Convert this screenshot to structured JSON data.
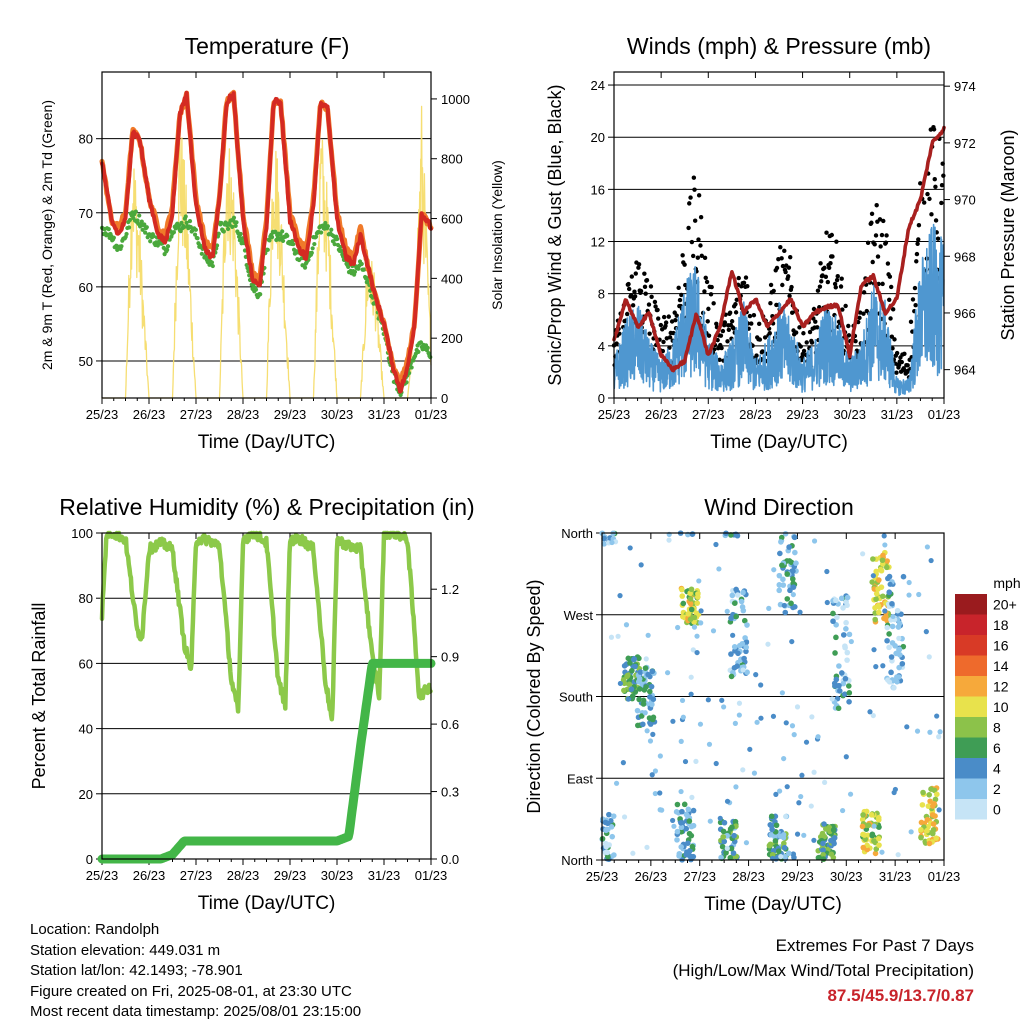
{
  "x_ticks": [
    "25/23",
    "26/23",
    "27/23",
    "28/23",
    "29/23",
    "30/23",
    "31/23",
    "01/23"
  ],
  "temperature": {
    "title": "Temperature (F)",
    "xlabel": "Time (Day/UTC)",
    "ylabel_left": "2m & 9m T (Red, Orange) & 2m Td (Green)",
    "ylabel_right": "Solar Insolation (Yellow)",
    "left_ticks": [
      "50",
      "60",
      "70",
      "80"
    ],
    "right_ticks": [
      "0",
      "200",
      "400",
      "600",
      "800",
      "1000"
    ]
  },
  "winds": {
    "title": "Winds (mph) & Pressure (mb)",
    "xlabel": "Time (Day/UTC)",
    "ylabel_left": "Sonic/Prop Wind & Gust (Blue, Black)",
    "ylabel_right": "Station Pressure (Maroon)",
    "left_ticks": [
      "0",
      "4",
      "8",
      "12",
      "16",
      "20",
      "24"
    ],
    "right_ticks": [
      "964",
      "966",
      "968",
      "970",
      "972",
      "974"
    ]
  },
  "humidity": {
    "title": "Relative Humidity (%) & Precipitation (in)",
    "xlabel": "Time (Day/UTC)",
    "ylabel_left": "Percent & Total Rainfall",
    "left_ticks": [
      "0",
      "20",
      "40",
      "60",
      "80",
      "100"
    ],
    "right_ticks": [
      "0.0",
      "0.3",
      "0.6",
      "0.9",
      "1.2"
    ]
  },
  "direction": {
    "title": "Wind Direction",
    "xlabel": "Time (Day/UTC)",
    "ylabel_left": "Direction (Colored By Speed)",
    "left_ticks": [
      "North",
      "East",
      "South",
      "West",
      "North"
    ],
    "legend_title": "mph",
    "legend_labels": [
      "0",
      "2",
      "4",
      "6",
      "8",
      "10",
      "12",
      "14",
      "16",
      "18",
      "20+"
    ],
    "legend_colors": [
      "#c6e4f6",
      "#8ec6ec",
      "#4a8cc8",
      "#3f9d55",
      "#8cc24a",
      "#e8e24c",
      "#f6a93b",
      "#ee6a2c",
      "#d83a26",
      "#c8242b",
      "#9a1b1e"
    ]
  },
  "info": {
    "location": "Location: Randolph",
    "elevation": "Station elevation: 449.031 m",
    "latlon": "Station lat/lon: 42.1493; -78.901",
    "created": "Figure created on Fri, 2025-08-01, at 23:30 UTC",
    "recent": "Most recent data timestamp: 2025/08/01 23:15:00"
  },
  "extremes": {
    "title": "Extremes For Past 7 Days",
    "subtitle": "(High/Low/Max Wind/Total Precipitation)",
    "values": "87.5/45.9/13.7/0.87"
  },
  "colors": {
    "temp2m": "#d42a22",
    "temp9m": "#f07a2a",
    "dewpoint": "#4aa83c",
    "solar": "#f6dc6a",
    "gust": "#000000",
    "wind": "#4f97d0",
    "pressure": "#a8201f",
    "rh": "#8cc94a",
    "precip": "#43b648"
  },
  "chart_data": [
    {
      "type": "line",
      "title": "Temperature (F)",
      "xlabel": "Time (Day/UTC)",
      "ylabel": "2m & 9m T (Red, Orange) & 2m Td (Green)",
      "ylabel_right": "Solar Insolation (Yellow)",
      "x_days": [
        0,
        0.2,
        0.35,
        0.5,
        0.65,
        0.8,
        1.0,
        1.2,
        1.35,
        1.5,
        1.65,
        1.8,
        2.0,
        2.2,
        2.35,
        2.5,
        2.65,
        2.8,
        3.0,
        3.2,
        3.35,
        3.5,
        3.65,
        3.8,
        4.0,
        4.2,
        4.35,
        4.5,
        4.65,
        4.8,
        5.0,
        5.2,
        5.35,
        5.5,
        5.65,
        5.8,
        6.0,
        6.2,
        6.35,
        6.5,
        6.65,
        6.8,
        7.0
      ],
      "ylim": [
        45,
        89
      ],
      "ylim_right": [
        0,
        1090
      ],
      "series": [
        {
          "name": "2m T",
          "values": [
            77,
            69,
            67,
            69,
            81,
            80,
            72,
            67,
            66,
            70,
            83,
            86,
            71,
            65,
            64,
            72,
            85,
            86,
            69,
            61,
            60,
            68,
            85,
            85,
            69,
            65,
            64,
            71,
            85,
            84,
            69,
            64,
            63,
            67,
            63,
            59,
            55,
            49,
            46,
            49,
            55,
            70,
            68
          ]
        },
        {
          "name": "9m T",
          "values": [
            77,
            69,
            68,
            70,
            81,
            80,
            72,
            68,
            67,
            71,
            83,
            86,
            72,
            66,
            65,
            72,
            85,
            86,
            70,
            62,
            61,
            69,
            85,
            85,
            70,
            66,
            65,
            72,
            85,
            84,
            70,
            65,
            64,
            68,
            63,
            59,
            55,
            49,
            47,
            50,
            55,
            70,
            68
          ]
        },
        {
          "name": "2m Td",
          "values": [
            68,
            67,
            65,
            67,
            70,
            69,
            67,
            66,
            65,
            68,
            68,
            69,
            67,
            64,
            63,
            68,
            68,
            69,
            66,
            60,
            59,
            65,
            67,
            67,
            66,
            64,
            63,
            66,
            68,
            68,
            66,
            63,
            62,
            63,
            61,
            58,
            54,
            48,
            46,
            48,
            51,
            52,
            51
          ]
        },
        {
          "name": "Solar Insolation",
          "values": [
            0,
            0,
            0,
            0,
            900,
            600,
            0,
            0,
            0,
            0,
            1000,
            700,
            0,
            0,
            0,
            0,
            950,
            750,
            0,
            0,
            0,
            0,
            980,
            700,
            0,
            0,
            0,
            0,
            960,
            700,
            0,
            0,
            0,
            0,
            500,
            450,
            0,
            0,
            0,
            0,
            300,
            1000,
            200
          ]
        }
      ]
    },
    {
      "type": "line",
      "title": "Winds (mph) & Pressure (mb)",
      "xlabel": "Time (Day/UTC)",
      "ylabel": "Sonic/Prop Wind & Gust (Blue, Black)",
      "ylabel_right": "Station Pressure (Maroon)",
      "x_days": [
        0,
        0.25,
        0.5,
        0.75,
        1.0,
        1.25,
        1.5,
        1.75,
        2.0,
        2.25,
        2.5,
        2.75,
        3.0,
        3.25,
        3.5,
        3.75,
        4.0,
        4.25,
        4.5,
        4.75,
        5.0,
        5.25,
        5.5,
        5.75,
        6.0,
        6.25,
        6.5,
        6.75,
        7.0
      ],
      "ylim": [
        0,
        25
      ],
      "ylim_right": [
        963,
        974.5
      ],
      "series": [
        {
          "name": "Wind",
          "values": [
            2,
            4,
            5,
            3,
            2,
            3,
            6,
            7,
            3,
            2,
            3,
            5,
            2,
            3,
            5,
            4,
            2,
            3,
            5,
            4,
            2,
            3,
            6,
            5,
            1,
            1,
            7,
            9,
            8
          ]
        },
        {
          "name": "Gust",
          "values": [
            4,
            7,
            10,
            8,
            5,
            6,
            11,
            15,
            8,
            5,
            6,
            10,
            5,
            6,
            10,
            9,
            4,
            6,
            11,
            10,
            4,
            6,
            13,
            12,
            3,
            3,
            14,
            18,
            16
          ]
        },
        {
          "name": "Pressure",
          "values": [
            965,
            966.5,
            965.5,
            966,
            964.5,
            964,
            964.3,
            966,
            964.5,
            965.5,
            967.5,
            966,
            966.5,
            965.5,
            966,
            966.5,
            965.5,
            966,
            966.2,
            966.3,
            964.5,
            967,
            967.3,
            966,
            966.5,
            969,
            970,
            972,
            972.5
          ]
        }
      ]
    },
    {
      "type": "line",
      "title": "Relative Humidity (%) & Precipitation (in)",
      "xlabel": "Time (Day/UTC)",
      "ylabel": "Percent & Total Rainfall",
      "x_days": [
        0,
        0.1,
        0.25,
        0.5,
        0.75,
        0.85,
        1.0,
        1.25,
        1.5,
        1.75,
        1.9,
        2.0,
        2.25,
        2.5,
        2.75,
        2.9,
        3.0,
        3.25,
        3.5,
        3.75,
        3.9,
        4.0,
        4.25,
        4.5,
        4.75,
        4.9,
        5.0,
        5.25,
        5.5,
        5.75,
        5.9,
        6.0,
        6.25,
        6.5,
        6.75,
        7.0
      ],
      "ylim": [
        0,
        100
      ],
      "ylim_right": [
        0,
        1.45
      ],
      "series": [
        {
          "name": "RH",
          "values": [
            75,
            100,
            100,
            98,
            70,
            68,
            95,
            97,
            95,
            66,
            58,
            98,
            98,
            96,
            55,
            45,
            98,
            100,
            97,
            55,
            47,
            98,
            98,
            95,
            55,
            42,
            98,
            96,
            95,
            62,
            50,
            100,
            100,
            98,
            50,
            53
          ]
        },
        {
          "name": "Total Rainfall",
          "values": [
            0.0,
            0.0,
            0.0,
            0.0,
            0.0,
            0.0,
            0.0,
            0.0,
            0.02,
            0.08,
            0.08,
            0.08,
            0.08,
            0.08,
            0.08,
            0.08,
            0.08,
            0.08,
            0.08,
            0.08,
            0.08,
            0.08,
            0.08,
            0.08,
            0.08,
            0.08,
            0.08,
            0.1,
            0.5,
            0.87,
            0.87,
            0.87,
            0.87,
            0.87,
            0.87,
            0.87
          ]
        }
      ]
    },
    {
      "type": "scatter",
      "title": "Wind Direction",
      "xlabel": "Time (Day/UTC)",
      "ylabel": "Direction (Colored By Speed)",
      "y_categories": [
        "North",
        "East",
        "South",
        "West",
        "North"
      ],
      "ylim_degrees": [
        0,
        360
      ],
      "clusters": [
        {
          "day": 0.1,
          "direction_center": 20,
          "spread": 40,
          "speed": 3
        },
        {
          "day": 0.6,
          "direction_center": 200,
          "spread": 30,
          "speed": 6
        },
        {
          "day": 0.9,
          "direction_center": 180,
          "spread": 40,
          "speed": 4
        },
        {
          "day": 1.8,
          "direction_center": 280,
          "spread": 25,
          "speed": 9
        },
        {
          "day": 1.7,
          "direction_center": 30,
          "spread": 40,
          "speed": 4
        },
        {
          "day": 2.6,
          "direction_center": 20,
          "spread": 30,
          "speed": 5
        },
        {
          "day": 2.8,
          "direction_center": 250,
          "spread": 60,
          "speed": 3
        },
        {
          "day": 3.6,
          "direction_center": 25,
          "spread": 30,
          "speed": 5
        },
        {
          "day": 3.8,
          "direction_center": 320,
          "spread": 60,
          "speed": 4
        },
        {
          "day": 4.6,
          "direction_center": 20,
          "spread": 25,
          "speed": 6
        },
        {
          "day": 4.9,
          "direction_center": 230,
          "spread": 80,
          "speed": 3
        },
        {
          "day": 5.5,
          "direction_center": 30,
          "spread": 30,
          "speed": 9
        },
        {
          "day": 5.7,
          "direction_center": 300,
          "spread": 50,
          "speed": 10
        },
        {
          "day": 6.0,
          "direction_center": 250,
          "spread": 80,
          "speed": 3
        },
        {
          "day": 6.7,
          "direction_center": 50,
          "spread": 40,
          "speed": 10
        }
      ]
    }
  ]
}
